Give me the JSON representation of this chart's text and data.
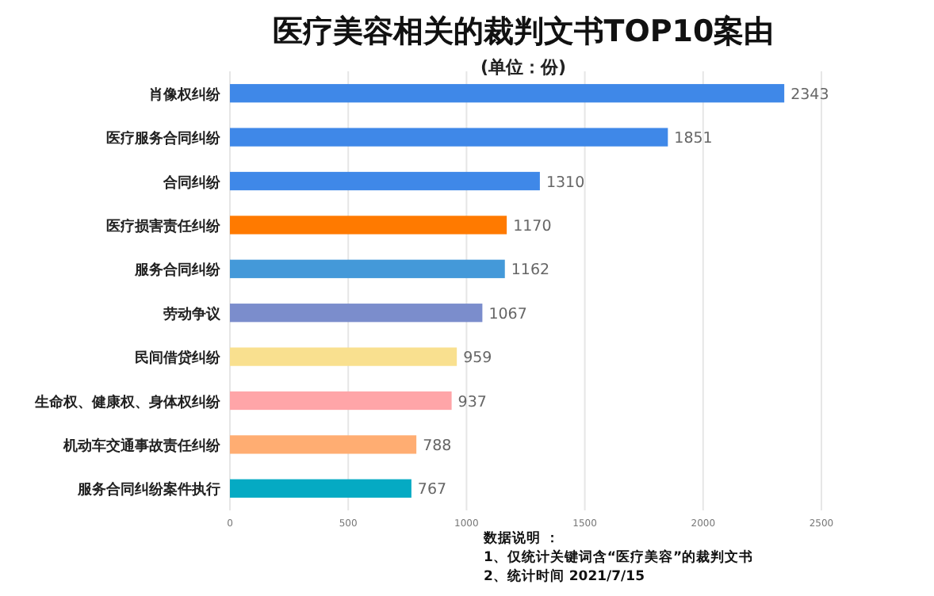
{
  "chart_data": {
    "type": "bar",
    "orientation": "horizontal",
    "title": "医疗美容相关的裁判文书TOP10案由",
    "subtitle": "(单位：份)",
    "categories": [
      "肖像权纠纷",
      "医疗服务合同纠纷",
      "合同纠纷",
      "医疗损害责任纠纷",
      "服务合同纠纷",
      "劳动争议",
      "民间借贷纠纷",
      "生命权、健康权、身体权纠纷",
      "机动车交通事故责任纠纷",
      "服务合同纠纷案件执行"
    ],
    "values": [
      2343,
      1851,
      1310,
      1170,
      1162,
      1067,
      959,
      937,
      788,
      767
    ],
    "colors": [
      "#3f88e8",
      "#3f88e8",
      "#3f88e8",
      "#ff7a00",
      "#4499d9",
      "#7b8dcc",
      "#f9e08f",
      "#ffa5a8",
      "#ffad72",
      "#05aac3"
    ],
    "xlim": [
      0,
      2500
    ],
    "xticks": [
      0,
      500,
      1000,
      1500,
      2000,
      2500
    ],
    "grid": "x",
    "data_labels": true,
    "annotations": [
      "数据说明 ：",
      "1、仅统计关键词含“医疗美容”的裁判文书",
      "2、统计时间  2021/7/15"
    ]
  }
}
